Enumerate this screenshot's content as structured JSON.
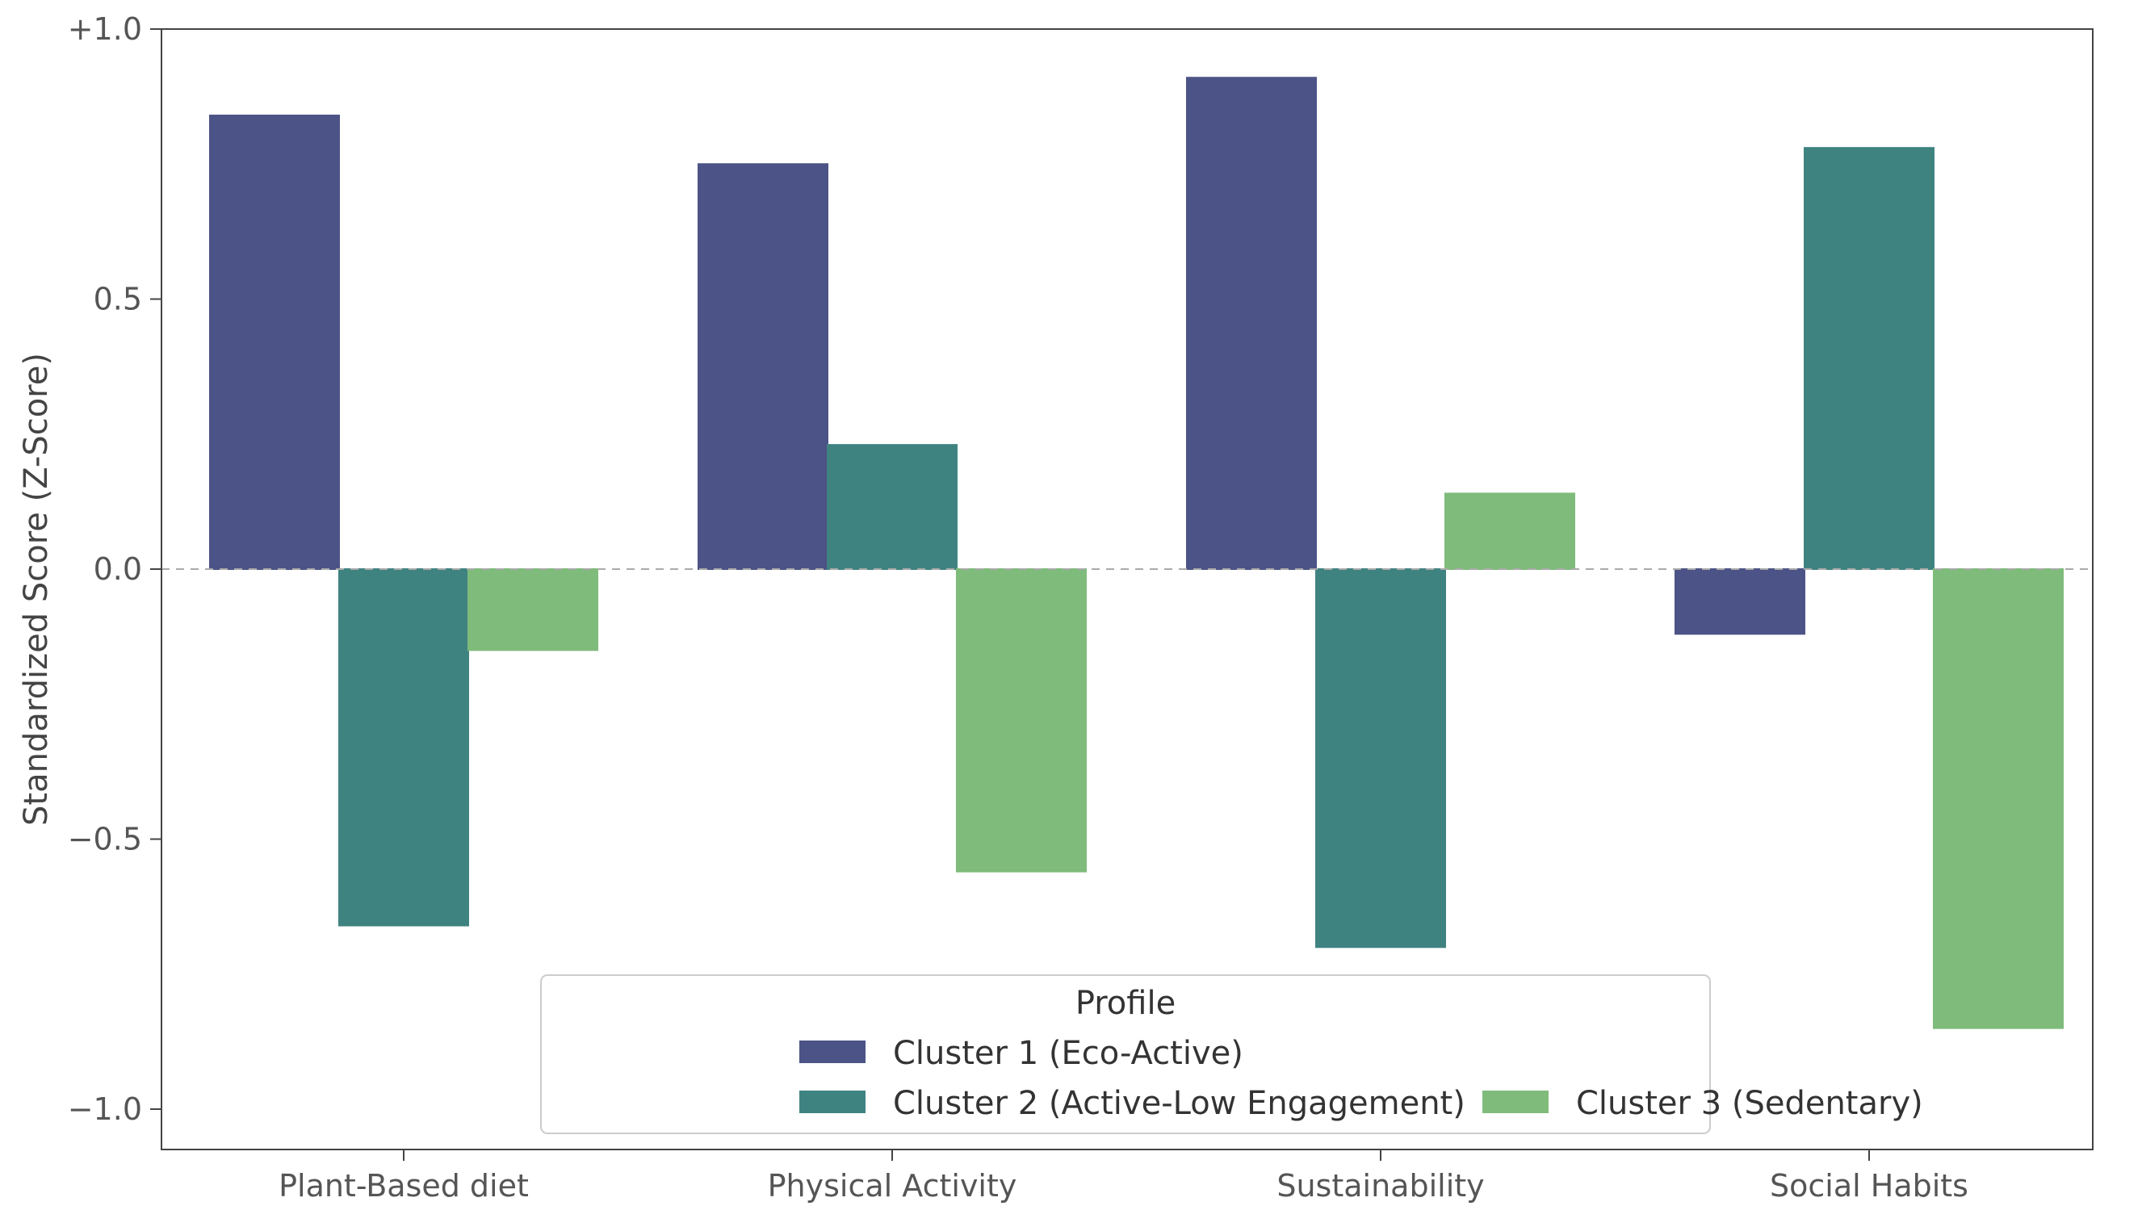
{
  "chart_data": {
    "type": "bar",
    "categories": [
      "Plant-Based diet",
      "Physical Activity",
      "Sustainability",
      "Social Habits"
    ],
    "series": [
      {
        "name": "Cluster 1 (Eco-Active)",
        "values": [
          0.84,
          0.75,
          0.91,
          -0.12
        ],
        "color": "#4c5386"
      },
      {
        "name": "Cluster 2 (Active-Low Engagement)",
        "values": [
          -0.66,
          0.23,
          -0.7,
          0.78
        ],
        "color": "#3f8381"
      },
      {
        "name": "Cluster 3 (Sedentary)",
        "values": [
          -0.15,
          -0.56,
          0.14,
          -0.85
        ],
        "color": "#7fbb7b"
      }
    ],
    "ylabel": "Standardized Score (Z-Score)",
    "xlabel": "",
    "ylim": [
      -1.09,
      1.0
    ],
    "yticks": [
      1.0,
      0.5,
      0.0,
      -0.5,
      -1.0
    ],
    "ytick_labels": [
      "+1.0",
      "0.5",
      "0.0",
      "−0.5",
      "−1.0"
    ],
    "zero_line": true,
    "grid": false,
    "legend": {
      "title": "Profile",
      "placement": "bottom-center"
    }
  }
}
